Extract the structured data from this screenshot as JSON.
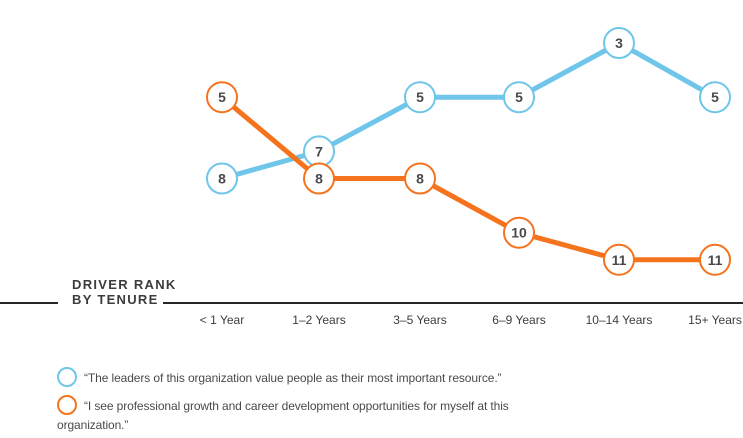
{
  "axis": {
    "label_line1": "DRIVER RANK",
    "label_line2": "BY TENURE"
  },
  "colors": {
    "blue_series": "#6FC5EA",
    "orange_series": "#F6731D",
    "axis_line": "#262626",
    "point_fill": "#FFFFFF",
    "point_number": "#4A4A4A"
  },
  "chart_data": {
    "type": "line",
    "title": "DRIVER RANK BY TENURE",
    "categories": [
      "< 1 Year",
      "1–2 Years",
      "3–5 Years",
      "6–9 Years",
      "10–14 Years",
      "15+ Years"
    ],
    "series": [
      {
        "name": "“The leaders of this organization value people as their most important resource.”",
        "color": "#6FC5EA",
        "values": [
          8,
          7,
          5,
          5,
          3,
          5
        ]
      },
      {
        "name": "“I see professional growth and career development opportunities for myself at this organization.”",
        "color": "#F6731D",
        "values": [
          5,
          8,
          8,
          10,
          11,
          11
        ]
      }
    ],
    "value_axis_inverted": true,
    "value_range_shown": [
      3,
      11
    ],
    "grid": false,
    "legend_position": "bottom",
    "data_labels": "inside circular markers"
  },
  "legend": {
    "items": [
      {
        "label": "“The leaders of this organization value people as their most important resource.”",
        "color": "#6FC5EA"
      },
      {
        "label": "“I see professional growth and career development opportunities for myself at this organization.”",
        "color": "#F6731D"
      }
    ]
  }
}
